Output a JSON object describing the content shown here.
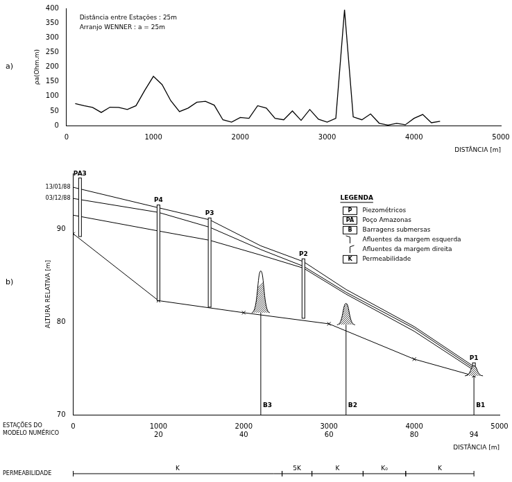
{
  "chart_data": [
    {
      "type": "line",
      "panel": "a)",
      "annotations": [
        "Distância entre Estações : 25m",
        "Arranjo WENNER : a = 25m"
      ],
      "x_label": "DISTÂNCIA [m]",
      "y_label": "ρa(Ohm.m)",
      "x": [
        100,
        200,
        300,
        400,
        500,
        600,
        700,
        800,
        900,
        1000,
        1100,
        1200,
        1300,
        1400,
        1500,
        1600,
        1700,
        1800,
        1900,
        2000,
        2100,
        2200,
        2300,
        2400,
        2500,
        2600,
        2700,
        2800,
        2900,
        3000,
        3100,
        3200,
        3300,
        3400,
        3500,
        3600,
        3700,
        3800,
        3900,
        4000,
        4100,
        4200,
        4300
      ],
      "values": [
        75,
        68,
        62,
        45,
        63,
        62,
        55,
        68,
        120,
        168,
        140,
        85,
        48,
        60,
        80,
        83,
        70,
        20,
        12,
        28,
        25,
        68,
        60,
        25,
        20,
        50,
        18,
        55,
        22,
        12,
        25,
        395,
        30,
        20,
        40,
        8,
        2,
        8,
        3,
        25,
        38,
        10,
        15
      ],
      "color": "#000000",
      "xlim": [
        0,
        5000
      ],
      "xticks": [
        0,
        1000,
        2000,
        3000,
        4000,
        5000
      ],
      "ylim": [
        0,
        400
      ],
      "yticks": [
        0,
        50,
        100,
        150,
        200,
        250,
        300,
        350,
        400
      ],
      "grid": false
    },
    {
      "type": "line",
      "panel": "b)",
      "x_label": "DISTÂNCIA [m]",
      "y_label": "ALTURA RELATIVA [m]",
      "station_label": "ESTAÇÕES DO MODELO NUMÉRICO",
      "xlim": [
        0,
        5000
      ],
      "xticks": [
        0,
        1000,
        2000,
        3000,
        4000,
        5000
      ],
      "stations": [
        {
          "value": 1000,
          "label": "20"
        },
        {
          "value": 2000,
          "label": "40"
        },
        {
          "value": 3000,
          "label": "60"
        },
        {
          "value": 4000,
          "label": "80"
        },
        {
          "value": 4700,
          "label": "94"
        }
      ],
      "ylim": [
        70,
        96
      ],
      "yticks": [
        70,
        80,
        90
      ],
      "grid": false,
      "series": [
        {
          "name": "13/01/88",
          "color": "#000000",
          "x": [
            0,
            1000,
            1600,
            2200,
            2700,
            3200,
            4000,
            4700
          ],
          "values": [
            94.5,
            92.3,
            91.0,
            88.2,
            86.5,
            83.5,
            79.5,
            75.2
          ]
        },
        {
          "name": "03/12/88",
          "color": "#000000",
          "x": [
            0,
            1000,
            1600,
            2200,
            2700,
            3200,
            4000,
            4700
          ],
          "values": [
            93.3,
            91.8,
            90.2,
            87.8,
            86.0,
            83.2,
            79.3,
            75.0
          ]
        },
        {
          "color": "#000000",
          "x": [
            0,
            1000,
            1600,
            2200,
            2700,
            3200,
            4000,
            4700
          ],
          "values": [
            91.5,
            89.8,
            88.8,
            87.2,
            85.8,
            83.0,
            79.0,
            74.8
          ]
        },
        {
          "color": "#000000",
          "marker": "cross",
          "x": [
            0,
            1000,
            2000,
            3000,
            4000,
            4700
          ],
          "values": [
            89.5,
            82.3,
            81.0,
            79.8,
            76.0,
            74.2
          ]
        }
      ],
      "wells": [
        {
          "label": "PA3",
          "x": 80,
          "bottom": 89.2,
          "top": 95.5
        },
        {
          "label": "P4",
          "x": 1000,
          "bottom": 82.3,
          "top": 92.6
        },
        {
          "label": "P3",
          "x": 1600,
          "bottom": 81.6,
          "top": 91.2
        },
        {
          "label": "P2",
          "x": 2700,
          "bottom": 80.4,
          "top": 86.8
        },
        {
          "label": "P1",
          "x": 4700,
          "bottom": 74.2,
          "top": 75.6
        }
      ],
      "dams": [
        {
          "label": "B3",
          "x": 2200,
          "bottom": 81.0,
          "top": 85.5
        },
        {
          "label": "B2",
          "x": 3200,
          "bottom": 79.7,
          "top": 82.0
        },
        {
          "label": "B1",
          "x": 4700,
          "bottom": 74.2,
          "top": 75.3
        }
      ],
      "legend_box": {
        "title": "LEGENDA",
        "items": [
          {
            "symbol": "P",
            "text": "Piezométricos"
          },
          {
            "symbol": "PA",
            "text": "Poço Amazonas"
          },
          {
            "symbol": "B",
            "text": "Barragens submersas"
          },
          {
            "text": "Afluentes da margem esquerda"
          },
          {
            "text": "Afluentes da margem direita"
          },
          {
            "symbol": "K",
            "text": "Permeabilidade"
          }
        ]
      },
      "permeability": {
        "label": "PERMEABILIDADE",
        "zones": [
          {
            "from": 0,
            "to": 2450,
            "label": "K"
          },
          {
            "from": 2450,
            "to": 2800,
            "label": "5K"
          },
          {
            "from": 2800,
            "to": 3400,
            "label": "K"
          },
          {
            "from": 3400,
            "to": 3900,
            "label": "K₀"
          },
          {
            "from": 3900,
            "to": 4700,
            "label": "K"
          }
        ]
      }
    }
  ]
}
